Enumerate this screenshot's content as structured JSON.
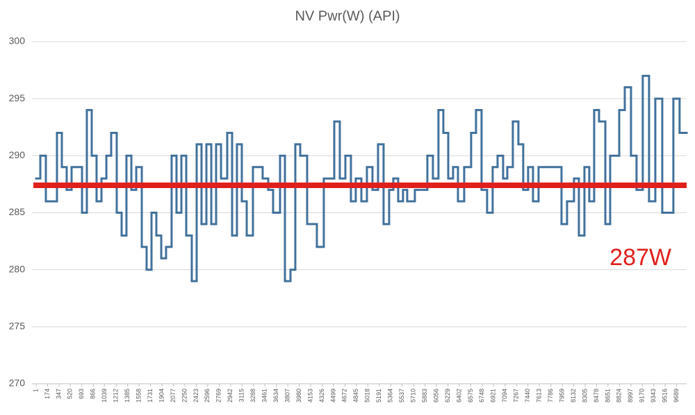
{
  "chart_data": {
    "type": "line",
    "line_shape": "step",
    "title": "NV Pwr(W) (API)",
    "color": "#41719c",
    "x": [
      1,
      64,
      148,
      316,
      390,
      463,
      537,
      695,
      768,
      842,
      915,
      989,
      1063,
      1136,
      1220,
      1294,
      1367,
      1441,
      1515,
      1599,
      1672,
      1746,
      1819,
      1893,
      1966,
      2050,
      2124,
      2198,
      2271,
      2355,
      2429,
      2502,
      2576,
      2650,
      2723,
      2797,
      2891,
      2965,
      3038,
      3112,
      3186,
      3280,
      3427,
      3511,
      3585,
      3690,
      3764,
      3848,
      3921,
      3995,
      4100,
      4247,
      4352,
      4510,
      4594,
      4678,
      4762,
      4835,
      4920,
      5004,
      5088,
      5172,
      5256,
      5340,
      5403,
      5477,
      5550,
      5613,
      5729,
      5918,
      6002,
      6086,
      6160,
      6234,
      6307,
      6381,
      6475,
      6580,
      6654,
      6738,
      6822,
      6906,
      6980,
      7064,
      7127,
      7211,
      7295,
      7368,
      7442,
      7516,
      7600,
      7947,
      8031,
      8136,
      8210,
      8294,
      8367,
      8441,
      8515,
      8610,
      8683,
      8820,
      8904,
      8998,
      9082,
      9176,
      9271,
      9366,
      9471,
      9639,
      9733
    ],
    "values": [
      288,
      290,
      286,
      292,
      289,
      287,
      289,
      285,
      294,
      290,
      286,
      288,
      290,
      292,
      285,
      283,
      290,
      287,
      289,
      282,
      280,
      285,
      283,
      281,
      282,
      290,
      285,
      290,
      283,
      279,
      291,
      284,
      291,
      284,
      291,
      288,
      292,
      283,
      291,
      286,
      283,
      289,
      288,
      287,
      285,
      290,
      279,
      280,
      291,
      290,
      284,
      282,
      288,
      293,
      288,
      290,
      286,
      288,
      286,
      289,
      287,
      291,
      284,
      287,
      288,
      286,
      287,
      286,
      287,
      290,
      288,
      294,
      292,
      288,
      289,
      286,
      289,
      292,
      294,
      287,
      285,
      289,
      290,
      288,
      289,
      293,
      291,
      287,
      289,
      286,
      289,
      284,
      286,
      288,
      283,
      289,
      286,
      294,
      293,
      284,
      290,
      294,
      296,
      290,
      287,
      297,
      286,
      295,
      285,
      295,
      292
    ],
    "xlim": [
      1,
      9840
    ],
    "xticks": [
      1,
      174,
      347,
      520,
      693,
      866,
      1039,
      1212,
      1385,
      1558,
      1731,
      1904,
      2077,
      2250,
      2423,
      2596,
      2769,
      2942,
      3115,
      3288,
      3461,
      3634,
      3807,
      3980,
      4153,
      4326,
      4499,
      4672,
      4845,
      5018,
      5191,
      5364,
      5537,
      5710,
      5883,
      6056,
      6229,
      6402,
      6575,
      6748,
      6921,
      7094,
      7267,
      7440,
      7613,
      7786,
      7959,
      8132,
      8305,
      8478,
      8651,
      8824,
      8997,
      9170,
      9343,
      9516,
      9689
    ],
    "ylim": [
      270,
      300
    ],
    "yticks": [
      270,
      275,
      280,
      285,
      290,
      295,
      300
    ],
    "grid": true,
    "average": {
      "value": 287.4,
      "label": "287W",
      "color": "#e0201c"
    }
  }
}
